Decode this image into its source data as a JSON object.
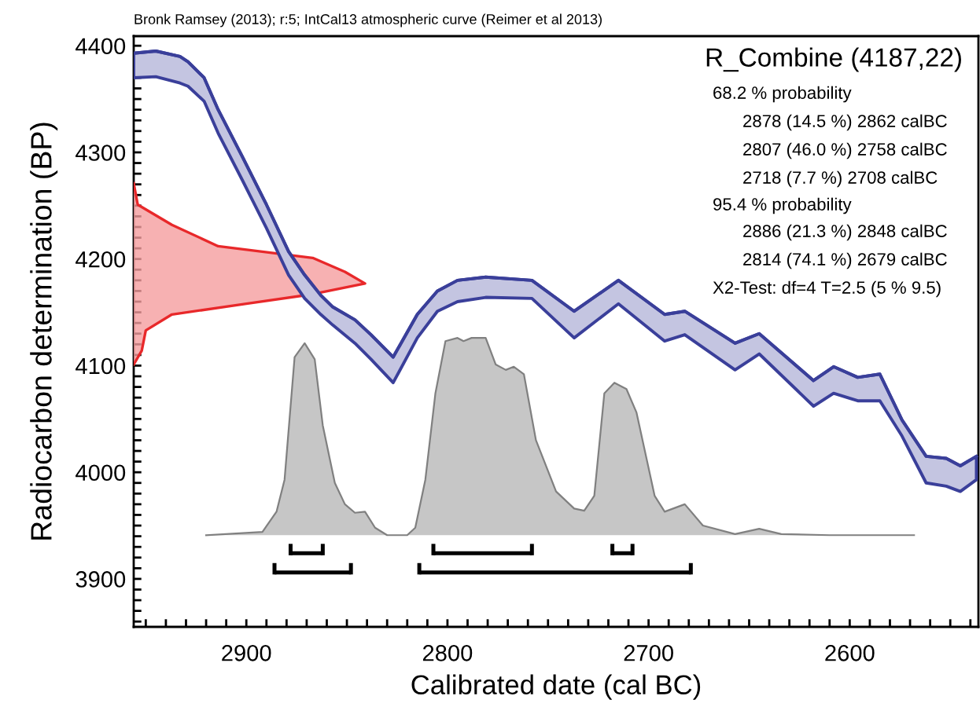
{
  "chart_data": {
    "type": "area",
    "title": "R_Combine (4187,22)",
    "subtitle": "Bronk Ramsey (2013); r:5; IntCal13 atmospheric curve (Reimer et al 2013)",
    "xlabel": "Calibrated date (cal BC)",
    "ylabel": "Radiocarbon determination (BP)",
    "annotations": [
      "68.2 % probability",
      "2878 (14.5 %) 2862 calBC",
      "2807 (46.0 %) 2758 calBC",
      "2718 (7.7 %) 2708 calBC",
      "95.4 % probability",
      "2886 (21.3 %) 2848 calBC",
      "2814 (74.1 %) 2679 calBC",
      "X2-Test: df=4 T=2.5 (5 % 9.5)"
    ],
    "series": [
      {
        "type": "line",
        "color": "#3a3f9a",
        "values": [
          4393,
          4395,
          4390,
          4385,
          4370,
          4340,
          4296,
          4251,
          4207,
          4185,
          4166,
          4155,
          4143,
          4129,
          4108,
          4148,
          4170,
          4180,
          4183,
          4180,
          4151,
          4180,
          4148,
          4151,
          4121,
          4130,
          4086,
          4099,
          4089,
          4092,
          4049,
          4015,
          4013,
          4006,
          4015
        ],
        "x": [
          2956,
          2945,
          2933,
          2929,
          2921,
          2914,
          2902,
          2890,
          2879,
          2871,
          2863,
          2857,
          2846,
          2838,
          2827,
          2815,
          2805,
          2795,
          2781,
          2758,
          2737,
          2715,
          2692,
          2682,
          2657,
          2645,
          2618,
          2608,
          2596,
          2585,
          2574,
          2562,
          2552,
          2545,
          2537
        ],
        "upper": [
          4393,
          4395,
          4390,
          4385,
          4370,
          4340,
          4296,
          4251,
          4207,
          4185,
          4166,
          4155,
          4143,
          4129,
          4108,
          4148,
          4170,
          4180,
          4183,
          4180,
          4151,
          4180,
          4148,
          4151,
          4121,
          4130,
          4086,
          4099,
          4089,
          4092,
          4049,
          4015,
          4013,
          4006,
          4015
        ],
        "lower": [
          4370,
          4371,
          4365,
          4362,
          4348,
          4318,
          4274,
          4229,
          4185,
          4163,
          4148,
          4138,
          4121,
          4106,
          4084,
          4126,
          4151,
          4160,
          4164,
          4163,
          4126,
          4158,
          4123,
          4129,
          4096,
          4111,
          4062,
          4074,
          4067,
          4067,
          4034,
          3990,
          3987,
          3982,
          3993
        ]
      },
      {
        "color": "#e8282a",
        "values": [
          4271,
          4251,
          4232,
          4212,
          4201,
          4188,
          4177,
          4167,
          4158,
          4148,
          4133,
          4114,
          4101
        ],
        "x": [
          2956,
          2954,
          2937,
          2914,
          2867,
          2851,
          2841,
          2867,
          2900,
          2937,
          2950,
          2952,
          2956
        ]
      },
      {
        "color": "#808080",
        "x": [
          2920,
          2892,
          2885,
          2881,
          2876,
          2871,
          2866,
          2862,
          2856,
          2851,
          2846,
          2841,
          2836,
          2830,
          2820,
          2816,
          2811,
          2806,
          2801,
          2795,
          2792,
          2788,
          2781,
          2776,
          2771,
          2767,
          2762,
          2756,
          2746,
          2737,
          2732,
          2727,
          2722,
          2717,
          2711,
          2706,
          2697,
          2692,
          2682,
          2673,
          2657,
          2645,
          2634,
          2610,
          2568
        ],
        "values": [
          3941,
          3944,
          3963,
          3993,
          4108,
          4121,
          4106,
          4044,
          3990,
          3970,
          3962,
          3963,
          3948,
          3941,
          3941,
          3948,
          3993,
          4074,
          4123,
          4126,
          4123,
          4126,
          4126,
          4101,
          4096,
          4099,
          4092,
          4030,
          3982,
          3966,
          3964,
          3978,
          4074,
          4084,
          4078,
          4056,
          3978,
          3963,
          3970,
          3950,
          3942,
          3947,
          3942,
          3941,
          3941
        ]
      },
      {
        "type": "line",
        "color": "#000000",
        "x": [
          2878,
          2862,
          null,
          2807,
          2758,
          null,
          2718,
          2708
        ],
        "values": [
          3924,
          3924,
          null,
          3924,
          3924,
          null,
          3924,
          3924
        ]
      },
      {
        "type": "line",
        "color": "#000000",
        "x": [
          2886,
          2848,
          null,
          2814,
          2679
        ],
        "values": [
          3906,
          3906,
          null,
          3906,
          3906
        ]
      }
    ],
    "xlim": [
      2956,
      2536
    ],
    "ylim": [
      3855,
      4409
    ],
    "xticks": [
      {
        "value": 2950,
        "label": null
      },
      {
        "value": 2940,
        "label": null
      },
      {
        "value": 2930,
        "label": null
      },
      {
        "value": 2920,
        "label": null
      },
      {
        "value": 2910,
        "label": null
      },
      2900,
      {
        "value": 2890,
        "label": null
      },
      {
        "value": 2880,
        "label": null
      },
      {
        "value": 2870,
        "label": null
      },
      {
        "value": 2860,
        "label": null
      },
      {
        "value": 2850,
        "label": null
      },
      {
        "value": 2840,
        "label": null
      },
      {
        "value": 2830,
        "label": null
      },
      {
        "value": 2820,
        "label": null
      },
      {
        "value": 2810,
        "label": null
      },
      2800,
      {
        "value": 2790,
        "label": null
      },
      {
        "value": 2780,
        "label": null
      },
      {
        "value": 2770,
        "label": null
      },
      {
        "value": 2760,
        "label": null
      },
      {
        "value": 2750,
        "label": null
      },
      {
        "value": 2740,
        "label": null
      },
      {
        "value": 2730,
        "label": null
      },
      {
        "value": 2720,
        "label": null
      },
      {
        "value": 2710,
        "label": null
      },
      2700,
      {
        "value": 2690,
        "label": null
      },
      {
        "value": 2680,
        "label": null
      },
      {
        "value": 2670,
        "label": null
      },
      {
        "value": 2660,
        "label": null
      },
      {
        "value": 2650,
        "label": null
      },
      {
        "value": 2640,
        "label": null
      },
      {
        "value": 2630,
        "label": null
      },
      {
        "value": 2620,
        "label": null
      },
      {
        "value": 2610,
        "label": null
      },
      2600,
      {
        "value": 2590,
        "label": null
      },
      {
        "value": 2580,
        "label": null
      },
      {
        "value": 2570,
        "label": null
      },
      {
        "value": 2560,
        "label": null
      },
      {
        "value": 2550,
        "label": null
      },
      {
        "value": 2540,
        "label": null
      }
    ],
    "yticks": [
      {
        "value": 3860,
        "label": null
      },
      {
        "value": 3870,
        "label": null
      },
      {
        "value": 3880,
        "label": null
      },
      {
        "value": 3890,
        "label": null
      },
      3900,
      {
        "value": 3910,
        "label": null
      },
      {
        "value": 3920,
        "label": null
      },
      {
        "value": 3930,
        "label": null
      },
      {
        "value": 3940,
        "label": null
      },
      {
        "value": 3950,
        "label": null
      },
      {
        "value": 3960,
        "label": null
      },
      {
        "value": 3970,
        "label": null
      },
      {
        "value": 3980,
        "label": null
      },
      {
        "value": 3990,
        "label": null
      },
      4000,
      {
        "value": 4010,
        "label": null
      },
      {
        "value": 4020,
        "label": null
      },
      {
        "value": 4030,
        "label": null
      },
      {
        "value": 4040,
        "label": null
      },
      {
        "value": 4050,
        "label": null
      },
      {
        "value": 4060,
        "label": null
      },
      {
        "value": 4070,
        "label": null
      },
      {
        "value": 4080,
        "label": null
      },
      {
        "value": 4090,
        "label": null
      },
      4100,
      {
        "value": 4110,
        "label": null
      },
      {
        "value": 4120,
        "label": null
      },
      {
        "value": 4130,
        "label": null
      },
      {
        "value": 4140,
        "label": null
      },
      {
        "value": 4150,
        "label": null
      },
      {
        "value": 4160,
        "label": null
      },
      {
        "value": 4170,
        "label": null
      },
      {
        "value": 4180,
        "label": null
      },
      {
        "value": 4190,
        "label": null
      },
      4200,
      {
        "value": 4210,
        "label": null
      },
      {
        "value": 4220,
        "label": null
      },
      {
        "value": 4230,
        "label": null
      },
      {
        "value": 4240,
        "label": null
      },
      {
        "value": 4250,
        "label": null
      },
      {
        "value": 4260,
        "label": null
      },
      {
        "value": 4270,
        "label": null
      },
      {
        "value": 4280,
        "label": null
      },
      {
        "value": 4290,
        "label": null
      },
      4300,
      {
        "value": 4310,
        "label": null
      },
      {
        "value": 4320,
        "label": null
      },
      {
        "value": 4330,
        "label": null
      },
      {
        "value": 4340,
        "label": null
      },
      {
        "value": 4350,
        "label": null
      },
      {
        "value": 4360,
        "label": null
      },
      {
        "value": 4370,
        "label": null
      },
      {
        "value": 4380,
        "label": null
      },
      {
        "value": 4390,
        "label": null
      },
      4400
    ],
    "grid": false,
    "legend": false
  }
}
